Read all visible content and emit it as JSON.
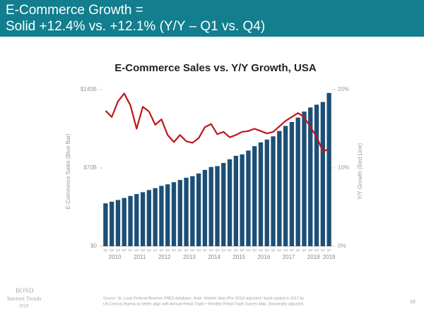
{
  "header": {
    "line1": "E-Commerce Growth =",
    "line2": "Solid +12.4% vs. +12.1% (Y/Y – Q1 vs. Q4)"
  },
  "chart_data": {
    "type": "bar",
    "title": "E-Commerce Sales vs. Y/Y Growth, USA",
    "ylabel": "E-Commerce Sales (Blue Bar)",
    "y2label": "Y/Y Growth (Red Line)",
    "categories": [
      "Q1",
      "Q2",
      "Q3",
      "Q4",
      "Q1",
      "Q2",
      "Q3",
      "Q4",
      "Q1",
      "Q2",
      "Q3",
      "Q4",
      "Q1",
      "Q2",
      "Q3",
      "Q4",
      "Q1",
      "Q2",
      "Q3",
      "Q4",
      "Q1",
      "Q2",
      "Q3",
      "Q4",
      "Q1",
      "Q2",
      "Q3",
      "Q4",
      "Q1",
      "Q2",
      "Q3",
      "Q4",
      "Q1",
      "Q2",
      "Q3",
      "Q4",
      "Q1"
    ],
    "years": [
      "2010",
      "2011",
      "2012",
      "2013",
      "2014",
      "2015",
      "2016",
      "2017",
      "2018",
      "2019"
    ],
    "series": [
      {
        "name": "E-Commerce Sales",
        "type": "bar",
        "color": "#1d4f76",
        "values": [
          38.3,
          39.8,
          41.3,
          43.1,
          44.9,
          46.6,
          48.3,
          50.2,
          51.9,
          53.9,
          55.3,
          57.2,
          59.2,
          61.2,
          62.6,
          65.0,
          68.2,
          70.8,
          71.6,
          74.4,
          77.7,
          80.8,
          82.1,
          85.5,
          89.4,
          92.8,
          95.3,
          98.2,
          103.0,
          107.5,
          111.0,
          115.0,
          120.3,
          124.0,
          126.5,
          128.9,
          137.0
        ]
      },
      {
        "name": "Y/Y Growth",
        "type": "line",
        "axis": "y2",
        "color": "#c0141c",
        "values": [
          17.3,
          16.5,
          18.5,
          19.5,
          18.0,
          15.0,
          17.8,
          17.2,
          15.5,
          16.2,
          14.2,
          13.3,
          14.2,
          13.4,
          13.2,
          13.8,
          15.2,
          15.6,
          14.3,
          14.6,
          13.9,
          14.2,
          14.6,
          14.7,
          15.0,
          14.7,
          14.4,
          14.6,
          15.3,
          16.0,
          16.5,
          17.0,
          16.5,
          15.2,
          14.0,
          12.1,
          12.4
        ]
      }
    ],
    "ylim": [
      0,
      140
    ],
    "yticks": [
      {
        "value": 0,
        "label": "$0"
      },
      {
        "value": 70,
        "label": "$70B"
      },
      {
        "value": 140,
        "label": "$140B"
      }
    ],
    "y2lim": [
      0,
      20
    ],
    "y2ticks": [
      {
        "value": 0,
        "label": "0%"
      },
      {
        "value": 10,
        "label": "10%"
      },
      {
        "value": 20,
        "label": "20%"
      }
    ],
    "grid": false
  },
  "footer": {
    "brand": "BOND",
    "brand2": "Internet Trends",
    "brand3": "2019",
    "source1": "Source: St. Louis Federal Reserve FRED database. Note: Historic data (Pre-2016) adjusted / back-casted in 2017 by",
    "source2": "US Census Bureau to better align with Annual Retail Trade + Monthly Retail Trade Survey data. Seasonally adjusted.",
    "page": "18"
  }
}
